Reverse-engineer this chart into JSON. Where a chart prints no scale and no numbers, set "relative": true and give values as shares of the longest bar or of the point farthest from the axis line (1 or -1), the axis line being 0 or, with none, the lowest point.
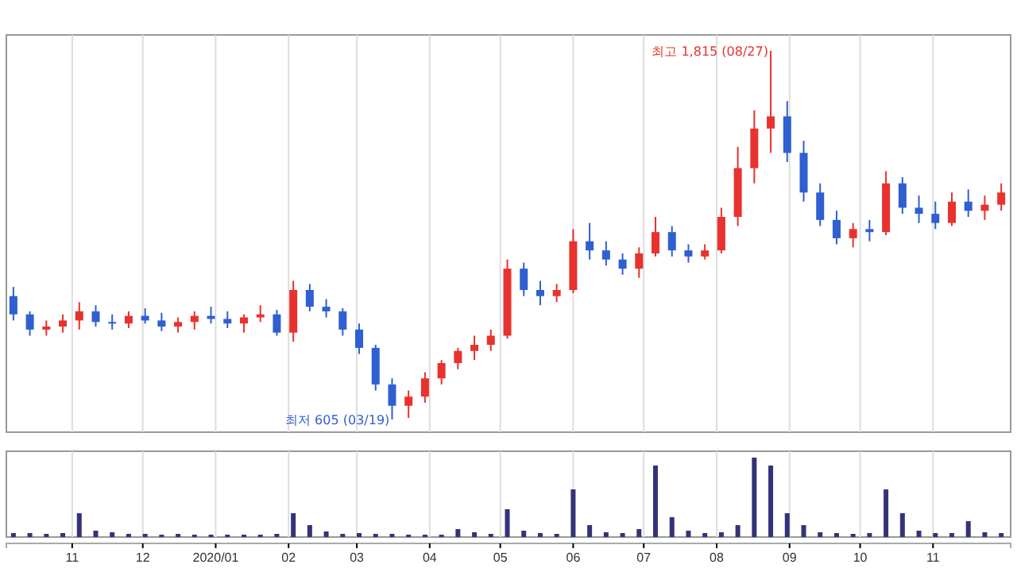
{
  "chart_data": [
    {
      "type": "candlestick",
      "grid": "x",
      "tick_labels": false,
      "xlim": [
        "2019-10-04",
        "2020-12-04"
      ],
      "xticks": [
        {
          "value": "2019-11-01",
          "label": null
        },
        {
          "value": "2019-12-01",
          "label": null
        },
        {
          "value": "2020-01-01",
          "label": null
        },
        {
          "value": "2020-02-01",
          "label": null
        },
        {
          "value": "2020-03-01",
          "label": null
        },
        {
          "value": "2020-04-01",
          "label": null
        },
        {
          "value": "2020-05-01",
          "label": null
        },
        {
          "value": "2020-06-01",
          "label": null
        },
        {
          "value": "2020-07-01",
          "label": null
        },
        {
          "value": "2020-08-01",
          "label": null
        },
        {
          "value": "2020-09-01",
          "label": null
        },
        {
          "value": "2020-10-01",
          "label": null
        },
        {
          "value": "2020-11-01",
          "label": null
        }
      ],
      "x": [
        "2019-10-07",
        "2019-10-14",
        "2019-10-21",
        "2019-10-28",
        "2019-11-04",
        "2019-11-11",
        "2019-11-18",
        "2019-11-25",
        "2019-12-02",
        "2019-12-09",
        "2019-12-16",
        "2019-12-23",
        "2019-12-30",
        "2020-01-06",
        "2020-01-13",
        "2020-01-20",
        "2020-01-27",
        "2020-02-03",
        "2020-02-10",
        "2020-02-17",
        "2020-02-24",
        "2020-03-02",
        "2020-03-09",
        "2020-03-16",
        "2020-03-23",
        "2020-03-30",
        "2020-04-06",
        "2020-04-13",
        "2020-04-20",
        "2020-04-27",
        "2020-05-04",
        "2020-05-11",
        "2020-05-18",
        "2020-05-25",
        "2020-06-01",
        "2020-06-08",
        "2020-06-15",
        "2020-06-22",
        "2020-06-29",
        "2020-07-06",
        "2020-07-13",
        "2020-07-20",
        "2020-07-27",
        "2020-08-03",
        "2020-08-10",
        "2020-08-17",
        "2020-08-24",
        "2020-08-31",
        "2020-09-07",
        "2020-09-14",
        "2020-09-21",
        "2020-09-28",
        "2020-10-05",
        "2020-10-12",
        "2020-10-19",
        "2020-10-26",
        "2020-11-02",
        "2020-11-09",
        "2020-11-16",
        "2020-11-23",
        "2020-11-30"
      ],
      "colors": [
        "#2f5fd0",
        "#2f5fd0",
        "#e8322e",
        "#e8322e",
        "#e8322e",
        "#2f5fd0",
        "#2f5fd0",
        "#e8322e",
        "#2f5fd0",
        "#2f5fd0",
        "#e8322e",
        "#e8322e",
        "#2f5fd0",
        "#2f5fd0",
        "#e8322e",
        "#e8322e",
        "#2f5fd0",
        "#e8322e",
        "#2f5fd0",
        "#2f5fd0",
        "#2f5fd0",
        "#2f5fd0",
        "#2f5fd0",
        "#2f5fd0",
        "#e8322e",
        "#e8322e",
        "#e8322e",
        "#e8322e",
        "#e8322e",
        "#e8322e",
        "#e8322e",
        "#2f5fd0",
        "#2f5fd0",
        "#e8322e",
        "#e8322e",
        "#2f5fd0",
        "#2f5fd0",
        "#2f5fd0",
        "#e8322e",
        "#e8322e",
        "#2f5fd0",
        "#2f5fd0",
        "#e8322e",
        "#e8322e",
        "#e8322e",
        "#e8322e",
        "#e8322e",
        "#2f5fd0",
        "#2f5fd0",
        "#2f5fd0",
        "#2f5fd0",
        "#e8322e",
        "#2f5fd0",
        "#e8322e",
        "#2f5fd0",
        "#2f5fd0",
        "#2f5fd0",
        "#e8322e",
        "#2f5fd0",
        "#e8322e",
        "#e8322e"
      ],
      "ohlc": [
        [
          1010,
          1040,
          930,
          950
        ],
        [
          950,
          960,
          880,
          900
        ],
        [
          900,
          930,
          880,
          910
        ],
        [
          910,
          950,
          890,
          930
        ],
        [
          930,
          990,
          900,
          960
        ],
        [
          960,
          980,
          910,
          925
        ],
        [
          925,
          950,
          900,
          920
        ],
        [
          920,
          960,
          905,
          945
        ],
        [
          945,
          970,
          920,
          930
        ],
        [
          930,
          955,
          895,
          910
        ],
        [
          910,
          940,
          890,
          925
        ],
        [
          925,
          960,
          900,
          945
        ],
        [
          945,
          975,
          920,
          935
        ],
        [
          935,
          960,
          905,
          920
        ],
        [
          920,
          950,
          890,
          940
        ],
        [
          940,
          980,
          925,
          950
        ],
        [
          950,
          965,
          880,
          890
        ],
        [
          890,
          1060,
          860,
          1030
        ],
        [
          1030,
          1050,
          960,
          975
        ],
        [
          975,
          1000,
          940,
          960
        ],
        [
          960,
          970,
          880,
          900
        ],
        [
          900,
          920,
          820,
          840
        ],
        [
          840,
          850,
          700,
          720
        ],
        [
          720,
          740,
          605,
          650
        ],
        [
          650,
          700,
          610,
          680
        ],
        [
          680,
          760,
          660,
          740
        ],
        [
          740,
          800,
          720,
          790
        ],
        [
          790,
          840,
          770,
          830
        ],
        [
          830,
          880,
          800,
          850
        ],
        [
          850,
          900,
          830,
          880
        ],
        [
          880,
          1130,
          870,
          1100
        ],
        [
          1100,
          1120,
          1010,
          1030
        ],
        [
          1030,
          1060,
          980,
          1010
        ],
        [
          1010,
          1050,
          990,
          1030
        ],
        [
          1030,
          1230,
          1020,
          1190
        ],
        [
          1190,
          1250,
          1130,
          1160
        ],
        [
          1160,
          1190,
          1110,
          1130
        ],
        [
          1130,
          1150,
          1080,
          1100
        ],
        [
          1100,
          1170,
          1070,
          1150
        ],
        [
          1150,
          1270,
          1140,
          1220
        ],
        [
          1220,
          1240,
          1140,
          1160
        ],
        [
          1160,
          1180,
          1120,
          1140
        ],
        [
          1140,
          1180,
          1130,
          1160
        ],
        [
          1160,
          1300,
          1150,
          1270
        ],
        [
          1270,
          1500,
          1240,
          1430
        ],
        [
          1430,
          1620,
          1380,
          1560
        ],
        [
          1560,
          1815,
          1480,
          1600
        ],
        [
          1600,
          1650,
          1450,
          1480
        ],
        [
          1480,
          1520,
          1320,
          1350
        ],
        [
          1350,
          1380,
          1240,
          1260
        ],
        [
          1260,
          1290,
          1180,
          1200
        ],
        [
          1200,
          1250,
          1170,
          1230
        ],
        [
          1230,
          1260,
          1190,
          1220
        ],
        [
          1220,
          1420,
          1210,
          1380
        ],
        [
          1380,
          1400,
          1280,
          1300
        ],
        [
          1300,
          1340,
          1250,
          1280
        ],
        [
          1280,
          1320,
          1230,
          1250
        ],
        [
          1250,
          1350,
          1240,
          1320
        ],
        [
          1320,
          1360,
          1270,
          1290
        ],
        [
          1290,
          1340,
          1260,
          1310
        ],
        [
          1310,
          1380,
          1290,
          1350
        ]
      ],
      "annotations": [
        {
          "text": "최고 1,815 (08/27)",
          "x": "2020-08-27",
          "y": 1815
        },
        {
          "text": "최저 605 (03/19)",
          "x": "2020-03-19",
          "y": 605
        }
      ]
    },
    {
      "type": "bar",
      "relative": true,
      "grid": "x",
      "tick_labels": "x",
      "color": "#33337a",
      "xlim": [
        "2019-10-04",
        "2020-12-04"
      ],
      "xticks": [
        {
          "value": "2019-11-01",
          "label": "11"
        },
        {
          "value": "2019-12-01",
          "label": "12"
        },
        {
          "value": "2020-01-01",
          "label": "2020/01"
        },
        {
          "value": "2020-02-01",
          "label": "02"
        },
        {
          "value": "2020-03-01",
          "label": "03"
        },
        {
          "value": "2020-04-01",
          "label": "04"
        },
        {
          "value": "2020-05-01",
          "label": "05"
        },
        {
          "value": "2020-06-01",
          "label": "06"
        },
        {
          "value": "2020-07-01",
          "label": "07"
        },
        {
          "value": "2020-08-01",
          "label": "08"
        },
        {
          "value": "2020-09-01",
          "label": "09"
        },
        {
          "value": "2020-10-01",
          "label": "10"
        },
        {
          "value": "2020-11-01",
          "label": "11"
        }
      ],
      "x": [
        "2019-10-07",
        "2019-10-14",
        "2019-10-21",
        "2019-10-28",
        "2019-11-04",
        "2019-11-11",
        "2019-11-18",
        "2019-11-25",
        "2019-12-02",
        "2019-12-09",
        "2019-12-16",
        "2019-12-23",
        "2019-12-30",
        "2020-01-06",
        "2020-01-13",
        "2020-01-20",
        "2020-01-27",
        "2020-02-03",
        "2020-02-10",
        "2020-02-17",
        "2020-02-24",
        "2020-03-02",
        "2020-03-09",
        "2020-03-16",
        "2020-03-23",
        "2020-03-30",
        "2020-04-06",
        "2020-04-13",
        "2020-04-20",
        "2020-04-27",
        "2020-05-04",
        "2020-05-11",
        "2020-05-18",
        "2020-05-25",
        "2020-06-01",
        "2020-06-08",
        "2020-06-15",
        "2020-06-22",
        "2020-06-29",
        "2020-07-06",
        "2020-07-13",
        "2020-07-20",
        "2020-07-27",
        "2020-08-03",
        "2020-08-10",
        "2020-08-17",
        "2020-08-24",
        "2020-08-31",
        "2020-09-07",
        "2020-09-14",
        "2020-09-21",
        "2020-09-28",
        "2020-10-05",
        "2020-10-12",
        "2020-10-19",
        "2020-10-26",
        "2020-11-02",
        "2020-11-09",
        "2020-11-16",
        "2020-11-23",
        "2020-11-30"
      ],
      "values": [
        0.05,
        0.05,
        0.04,
        0.05,
        0.3,
        0.08,
        0.06,
        0.04,
        0.04,
        0.03,
        0.04,
        0.03,
        0.03,
        0.03,
        0.03,
        0.03,
        0.04,
        0.3,
        0.15,
        0.07,
        0.04,
        0.05,
        0.04,
        0.04,
        0.03,
        0.03,
        0.03,
        0.1,
        0.06,
        0.04,
        0.35,
        0.08,
        0.05,
        0.04,
        0.6,
        0.15,
        0.06,
        0.05,
        0.1,
        0.9,
        0.25,
        0.08,
        0.05,
        0.06,
        0.15,
        1.0,
        0.9,
        0.3,
        0.15,
        0.06,
        0.05,
        0.04,
        0.05,
        0.6,
        0.3,
        0.08,
        0.05,
        0.05,
        0.2,
        0.06,
        0.05
      ]
    }
  ]
}
